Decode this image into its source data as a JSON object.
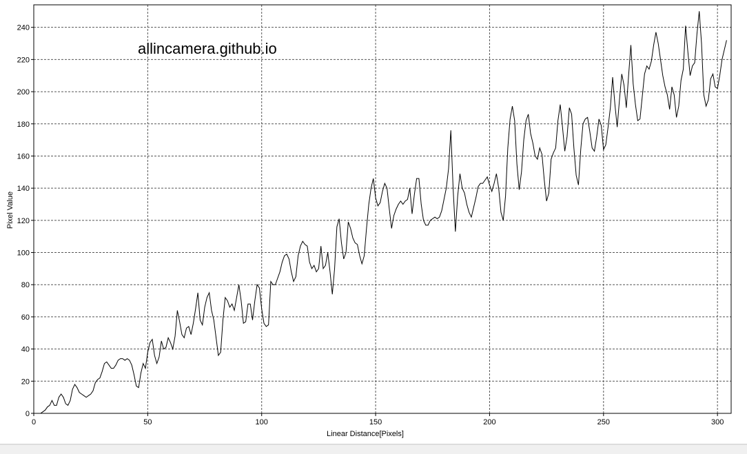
{
  "watermark": "allincamera.github.io",
  "chart_data": {
    "type": "line",
    "xlabel": "Linear Distance[Pixels]",
    "ylabel": "Pixel Value",
    "xlim": [
      0,
      306
    ],
    "ylim": [
      0,
      254
    ],
    "xticks": [
      0,
      50,
      100,
      150,
      200,
      250,
      300
    ],
    "yticks": [
      0,
      20,
      40,
      60,
      80,
      100,
      120,
      140,
      160,
      180,
      200,
      220,
      240
    ],
    "grid": true,
    "legend": "none",
    "series": [
      {
        "color": "#000000",
        "points": [
          [
            0,
            0
          ],
          [
            3,
            0
          ],
          [
            4,
            1
          ],
          [
            5,
            2
          ],
          [
            6,
            4
          ],
          [
            7,
            5
          ],
          [
            8,
            8
          ],
          [
            9,
            5
          ],
          [
            10,
            5
          ],
          [
            11,
            10
          ],
          [
            12,
            12
          ],
          [
            13,
            10
          ],
          [
            14,
            6
          ],
          [
            15,
            5
          ],
          [
            16,
            8
          ],
          [
            17,
            15
          ],
          [
            18,
            18
          ],
          [
            19,
            16
          ],
          [
            20,
            13
          ],
          [
            21,
            12
          ],
          [
            22,
            11
          ],
          [
            23,
            10
          ],
          [
            24,
            11
          ],
          [
            25,
            12
          ],
          [
            26,
            14
          ],
          [
            27,
            19
          ],
          [
            28,
            21
          ],
          [
            29,
            22
          ],
          [
            30,
            26
          ],
          [
            31,
            31
          ],
          [
            32,
            32
          ],
          [
            33,
            30
          ],
          [
            34,
            28
          ],
          [
            35,
            28
          ],
          [
            36,
            30
          ],
          [
            37,
            33
          ],
          [
            38,
            34
          ],
          [
            39,
            34
          ],
          [
            40,
            33
          ],
          [
            41,
            34
          ],
          [
            42,
            33
          ],
          [
            43,
            30
          ],
          [
            44,
            24
          ],
          [
            45,
            17
          ],
          [
            46,
            16
          ],
          [
            47,
            25
          ],
          [
            48,
            31
          ],
          [
            49,
            28
          ],
          [
            50,
            38
          ],
          [
            51,
            44
          ],
          [
            52,
            46
          ],
          [
            53,
            36
          ],
          [
            54,
            31
          ],
          [
            55,
            35
          ],
          [
            56,
            45
          ],
          [
            57,
            40
          ],
          [
            58,
            41
          ],
          [
            59,
            47
          ],
          [
            60,
            44
          ],
          [
            61,
            40
          ],
          [
            62,
            48
          ],
          [
            63,
            64
          ],
          [
            64,
            57
          ],
          [
            65,
            49
          ],
          [
            66,
            47
          ],
          [
            67,
            53
          ],
          [
            68,
            54
          ],
          [
            69,
            49
          ],
          [
            70,
            56
          ],
          [
            71,
            65
          ],
          [
            72,
            75
          ],
          [
            73,
            58
          ],
          [
            74,
            55
          ],
          [
            75,
            66
          ],
          [
            76,
            72
          ],
          [
            77,
            75
          ],
          [
            78,
            64
          ],
          [
            79,
            58
          ],
          [
            80,
            47
          ],
          [
            81,
            36
          ],
          [
            82,
            38
          ],
          [
            83,
            58
          ],
          [
            84,
            72
          ],
          [
            85,
            70
          ],
          [
            86,
            66
          ],
          [
            87,
            68
          ],
          [
            88,
            64
          ],
          [
            89,
            72
          ],
          [
            90,
            80
          ],
          [
            91,
            70
          ],
          [
            92,
            56
          ],
          [
            93,
            57
          ],
          [
            94,
            68
          ],
          [
            95,
            68
          ],
          [
            96,
            58
          ],
          [
            97,
            70
          ],
          [
            98,
            80
          ],
          [
            99,
            78
          ],
          [
            100,
            65
          ],
          [
            101,
            56
          ],
          [
            102,
            54
          ],
          [
            103,
            55
          ],
          [
            104,
            82
          ],
          [
            105,
            80
          ],
          [
            106,
            80
          ],
          [
            107,
            84
          ],
          [
            108,
            88
          ],
          [
            109,
            94
          ],
          [
            110,
            98
          ],
          [
            111,
            99
          ],
          [
            112,
            96
          ],
          [
            113,
            88
          ],
          [
            114,
            82
          ],
          [
            115,
            85
          ],
          [
            116,
            98
          ],
          [
            117,
            104
          ],
          [
            118,
            107
          ],
          [
            119,
            105
          ],
          [
            120,
            104
          ],
          [
            121,
            94
          ],
          [
            122,
            90
          ],
          [
            123,
            92
          ],
          [
            124,
            88
          ],
          [
            125,
            90
          ],
          [
            126,
            104
          ],
          [
            127,
            90
          ],
          [
            128,
            92
          ],
          [
            129,
            100
          ],
          [
            130,
            88
          ],
          [
            131,
            74
          ],
          [
            132,
            90
          ],
          [
            133,
            116
          ],
          [
            134,
            121
          ],
          [
            135,
            106
          ],
          [
            136,
            96
          ],
          [
            137,
            100
          ],
          [
            138,
            119
          ],
          [
            139,
            115
          ],
          [
            140,
            109
          ],
          [
            141,
            106
          ],
          [
            142,
            105
          ],
          [
            143,
            98
          ],
          [
            144,
            93
          ],
          [
            145,
            98
          ],
          [
            146,
            115
          ],
          [
            147,
            130
          ],
          [
            148,
            140
          ],
          [
            149,
            146
          ],
          [
            150,
            134
          ],
          [
            151,
            129
          ],
          [
            152,
            131
          ],
          [
            153,
            138
          ],
          [
            154,
            143
          ],
          [
            155,
            140
          ],
          [
            156,
            127
          ],
          [
            157,
            115
          ],
          [
            158,
            123
          ],
          [
            159,
            127
          ],
          [
            160,
            130
          ],
          [
            161,
            132
          ],
          [
            162,
            130
          ],
          [
            163,
            132
          ],
          [
            164,
            133
          ],
          [
            165,
            140
          ],
          [
            166,
            124
          ],
          [
            167,
            136
          ],
          [
            168,
            146
          ],
          [
            169,
            146
          ],
          [
            170,
            130
          ],
          [
            171,
            120
          ],
          [
            172,
            117
          ],
          [
            173,
            117
          ],
          [
            174,
            120
          ],
          [
            175,
            121
          ],
          [
            176,
            122
          ],
          [
            177,
            121
          ],
          [
            178,
            122
          ],
          [
            179,
            126
          ],
          [
            180,
            133
          ],
          [
            181,
            140
          ],
          [
            182,
            152
          ],
          [
            183,
            176
          ],
          [
            184,
            140
          ],
          [
            185,
            113
          ],
          [
            186,
            135
          ],
          [
            187,
            149
          ],
          [
            188,
            140
          ],
          [
            189,
            137
          ],
          [
            190,
            130
          ],
          [
            191,
            125
          ],
          [
            192,
            122
          ],
          [
            193,
            128
          ],
          [
            194,
            134
          ],
          [
            195,
            141
          ],
          [
            196,
            143
          ],
          [
            197,
            143
          ],
          [
            198,
            145
          ],
          [
            199,
            147
          ],
          [
            200,
            142
          ],
          [
            201,
            138
          ],
          [
            202,
            143
          ],
          [
            203,
            149
          ],
          [
            204,
            140
          ],
          [
            205,
            125
          ],
          [
            206,
            120
          ],
          [
            207,
            135
          ],
          [
            208,
            165
          ],
          [
            209,
            183
          ],
          [
            210,
            191
          ],
          [
            211,
            182
          ],
          [
            212,
            155
          ],
          [
            213,
            139
          ],
          [
            214,
            150
          ],
          [
            215,
            170
          ],
          [
            216,
            182
          ],
          [
            217,
            186
          ],
          [
            218,
            174
          ],
          [
            219,
            168
          ],
          [
            220,
            160
          ],
          [
            221,
            158
          ],
          [
            222,
            165
          ],
          [
            223,
            161
          ],
          [
            224,
            145
          ],
          [
            225,
            132
          ],
          [
            226,
            137
          ],
          [
            227,
            158
          ],
          [
            228,
            162
          ],
          [
            229,
            165
          ],
          [
            230,
            182
          ],
          [
            231,
            192
          ],
          [
            232,
            178
          ],
          [
            233,
            163
          ],
          [
            234,
            172
          ],
          [
            235,
            190
          ],
          [
            236,
            186
          ],
          [
            237,
            165
          ],
          [
            238,
            148
          ],
          [
            239,
            142
          ],
          [
            240,
            164
          ],
          [
            241,
            180
          ],
          [
            242,
            183
          ],
          [
            243,
            184
          ],
          [
            244,
            175
          ],
          [
            245,
            165
          ],
          [
            246,
            163
          ],
          [
            247,
            172
          ],
          [
            248,
            183
          ],
          [
            249,
            179
          ],
          [
            250,
            164
          ],
          [
            251,
            167
          ],
          [
            252,
            178
          ],
          [
            253,
            190
          ],
          [
            254,
            209
          ],
          [
            255,
            192
          ],
          [
            256,
            178
          ],
          [
            257,
            195
          ],
          [
            258,
            211
          ],
          [
            259,
            204
          ],
          [
            260,
            190
          ],
          [
            261,
            210
          ],
          [
            262,
            229
          ],
          [
            263,
            205
          ],
          [
            264,
            192
          ],
          [
            265,
            182
          ],
          [
            266,
            183
          ],
          [
            267,
            197
          ],
          [
            268,
            211
          ],
          [
            269,
            216
          ],
          [
            270,
            214
          ],
          [
            271,
            219
          ],
          [
            272,
            229
          ],
          [
            273,
            237
          ],
          [
            274,
            230
          ],
          [
            275,
            220
          ],
          [
            276,
            210
          ],
          [
            277,
            203
          ],
          [
            278,
            198
          ],
          [
            279,
            189
          ],
          [
            280,
            203
          ],
          [
            281,
            198
          ],
          [
            282,
            184
          ],
          [
            283,
            191
          ],
          [
            284,
            207
          ],
          [
            285,
            214
          ],
          [
            286,
            241
          ],
          [
            287,
            225
          ],
          [
            288,
            210
          ],
          [
            289,
            216
          ],
          [
            290,
            218
          ],
          [
            291,
            236
          ],
          [
            292,
            250
          ],
          [
            293,
            230
          ],
          [
            294,
            198
          ],
          [
            295,
            191
          ],
          [
            296,
            195
          ],
          [
            297,
            208
          ],
          [
            298,
            211
          ],
          [
            299,
            203
          ],
          [
            300,
            202
          ],
          [
            301,
            210
          ],
          [
            302,
            220
          ],
          [
            303,
            226
          ],
          [
            304,
            232
          ]
        ]
      }
    ]
  }
}
